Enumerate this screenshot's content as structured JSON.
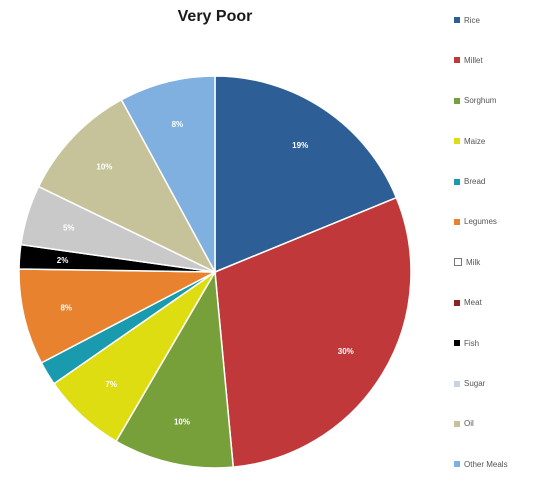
{
  "chart_data": {
    "type": "pie",
    "title": "Very Poor",
    "legend_position": "right",
    "start_angle_deg": 0,
    "direction": "clockwise",
    "slices": [
      {
        "name": "Rice",
        "value": 19,
        "label": "19%",
        "color": "#2e5e96"
      },
      {
        "name": "Millet",
        "value": 30,
        "label": "30%",
        "color": "#c0383a"
      },
      {
        "name": "Sorghum",
        "value": 10,
        "label": "10%",
        "color": "#77a03b"
      },
      {
        "name": "Maize",
        "value": 7,
        "label": "7%",
        "color": "#dedd12"
      },
      {
        "name": "Bread",
        "value": 2,
        "label": "",
        "color": "#1a9aae"
      },
      {
        "name": "Legumes",
        "value": 8,
        "label": "8%",
        "color": "#e8822f"
      },
      {
        "name": "Milk",
        "value": 0,
        "label": "",
        "color": "#d8d8d8"
      },
      {
        "name": "Meat",
        "value": 0,
        "label": "",
        "color": "#8b2325"
      },
      {
        "name": "Fish",
        "value": 2,
        "label": "2%",
        "color": "#000000"
      },
      {
        "name": "Sugar",
        "value": 5,
        "label": "5%",
        "color": "#c9c9c9"
      },
      {
        "name": "Oil",
        "value": 10,
        "label": "10%",
        "color": "#c6c29a"
      },
      {
        "name": "Other Meals",
        "value": 8,
        "label": "8%",
        "color": "#7fb0e0"
      }
    ]
  },
  "legend_items": [
    {
      "name": "Rice",
      "color": "#2e5e96"
    },
    {
      "name": "Millet",
      "color": "#c0383a"
    },
    {
      "name": "Sorghum",
      "color": "#77a03b"
    },
    {
      "name": "Maize",
      "color": "#dedd12"
    },
    {
      "name": "Bread",
      "color": "#1a9aae"
    },
    {
      "name": "Legumes",
      "color": "#e8822f"
    },
    {
      "name": "Milk",
      "color": "#ffffff"
    },
    {
      "name": "Meat",
      "color": "#8b2325"
    },
    {
      "name": "Fish",
      "color": "#000000"
    },
    {
      "name": "Sugar",
      "color": "#c9d3e0"
    },
    {
      "name": "Oil",
      "color": "#c6c29a"
    },
    {
      "name": "Other Meals",
      "color": "#7fb0e0"
    }
  ]
}
